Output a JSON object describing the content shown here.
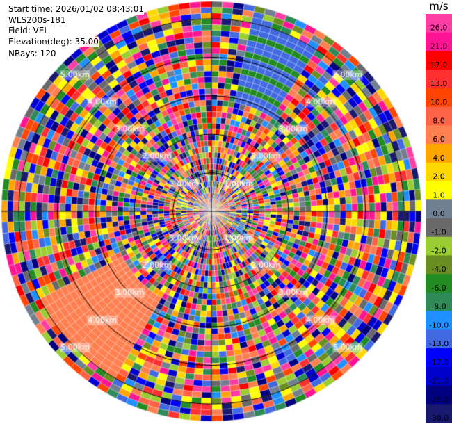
{
  "header": {
    "start_time": "Start time: 2026/01/02 08:43:01",
    "instrument": "WLS200s-181",
    "field": "Field: VEL",
    "elevation": "Elevation(deg): 35.00",
    "nrays": "NRays: 120"
  },
  "range_rings": [
    {
      "km": 1,
      "label": "1.00km"
    },
    {
      "km": 2,
      "label": "2.00km"
    },
    {
      "km": 3,
      "label": "3.00km"
    },
    {
      "km": 4,
      "label": "4.00km"
    },
    {
      "km": 5,
      "label": "5.00km"
    }
  ],
  "max_range_km": 5.45,
  "colorbar": {
    "unit": "m/s",
    "bins": [
      {
        "label": "26.0",
        "color": "#ff3ea5"
      },
      {
        "label": "21.0",
        "color": "#ff1493"
      },
      {
        "label": "17.0",
        "color": "#ff0000"
      },
      {
        "label": "13.0",
        "color": "#ff3030"
      },
      {
        "label": "10.0",
        "color": "#ff4500"
      },
      {
        "label": "8.0",
        "color": "#ff6347"
      },
      {
        "label": "6.0",
        "color": "#ff7f50"
      },
      {
        "label": "4.0",
        "color": "#ffa500"
      },
      {
        "label": "2.0",
        "color": "#ffd700"
      },
      {
        "label": "1.0",
        "color": "#ffff00"
      },
      {
        "label": "0.0",
        "color": "#708090"
      },
      {
        "label": "-1.0",
        "color": "#696969"
      },
      {
        "label": "-2.0",
        "color": "#9acd32"
      },
      {
        "label": "-4.0",
        "color": "#6b8e23"
      },
      {
        "label": "-6.0",
        "color": "#228b22"
      },
      {
        "label": "-8.0",
        "color": "#2e8b57"
      },
      {
        "label": "-10.0",
        "color": "#1e90ff"
      },
      {
        "label": "-13.0",
        "color": "#4169e1"
      },
      {
        "label": "-17.0",
        "color": "#0000ff"
      },
      {
        "label": "-21.0",
        "color": "#0000cd"
      },
      {
        "label": "-26.0",
        "color": "#000080"
      },
      {
        "label": "-30.0",
        "color": "#191970"
      }
    ]
  }
}
